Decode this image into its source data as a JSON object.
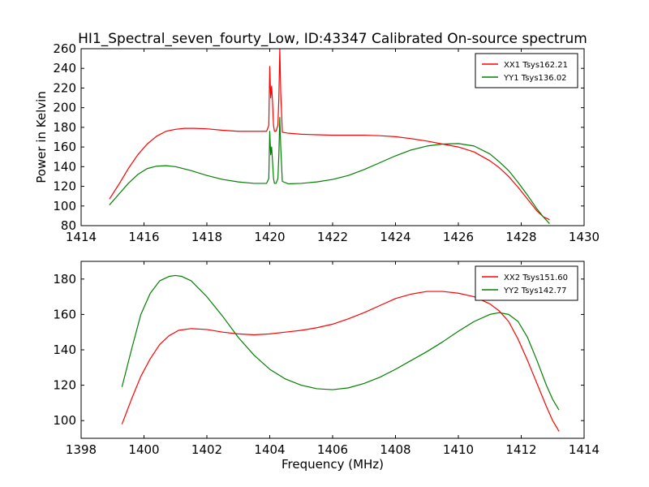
{
  "figure": {
    "title": "HI1_Spectral_seven_fourty_Low, ID:43347 Calibrated On-source spectrum",
    "xlabel": "Frequency (MHz)",
    "ylabel": "Power in Kelvin"
  },
  "chart_data": [
    {
      "type": "line",
      "xlim": [
        1414,
        1430
      ],
      "ylim": [
        80,
        260
      ],
      "xticks": [
        1414,
        1416,
        1418,
        1420,
        1422,
        1424,
        1426,
        1428,
        1430
      ],
      "yticks": [
        80,
        100,
        120,
        140,
        160,
        180,
        200,
        220,
        240,
        260
      ],
      "grid": false,
      "legend": "top-right",
      "series": [
        {
          "name": "XX1 Tsys162.21",
          "color": "#ff0000",
          "x": [
            1414.9,
            1415.2,
            1415.5,
            1415.8,
            1416.1,
            1416.4,
            1416.7,
            1417.0,
            1417.3,
            1417.6,
            1418.0,
            1418.5,
            1419.0,
            1419.5,
            1419.9,
            1419.97,
            1420.0,
            1420.03,
            1420.06,
            1420.09,
            1420.12,
            1420.15,
            1420.2,
            1420.26,
            1420.29,
            1420.32,
            1420.35,
            1420.4,
            1420.6,
            1421.0,
            1421.5,
            1422.0,
            1422.5,
            1423.0,
            1423.5,
            1424.0,
            1424.5,
            1425.0,
            1425.5,
            1426.0,
            1426.5,
            1427.0,
            1427.3,
            1427.6,
            1427.9,
            1428.2,
            1428.5,
            1428.7,
            1428.9
          ],
          "values": [
            107,
            122,
            138,
            152,
            163,
            171,
            176,
            178,
            179,
            179,
            178.5,
            177,
            176,
            176,
            176,
            182,
            242,
            210,
            222,
            205,
            182,
            176,
            176,
            182,
            210,
            260,
            215,
            175,
            174,
            173,
            172.5,
            172,
            172,
            172,
            171.5,
            170.5,
            168.5,
            166,
            163,
            160,
            155,
            146,
            139,
            130,
            119,
            107,
            95,
            89,
            86
          ]
        },
        {
          "name": "YY1 Tsys136.02",
          "color": "#008000",
          "x": [
            1414.9,
            1415.2,
            1415.5,
            1415.8,
            1416.1,
            1416.4,
            1416.7,
            1417.0,
            1417.5,
            1418.0,
            1418.5,
            1419.0,
            1419.5,
            1419.9,
            1419.97,
            1420.0,
            1420.03,
            1420.06,
            1420.09,
            1420.12,
            1420.15,
            1420.2,
            1420.26,
            1420.29,
            1420.32,
            1420.35,
            1420.4,
            1420.6,
            1421.0,
            1421.5,
            1422.0,
            1422.5,
            1423.0,
            1423.5,
            1424.0,
            1424.5,
            1425.0,
            1425.5,
            1426.0,
            1426.5,
            1427.0,
            1427.3,
            1427.6,
            1427.9,
            1428.2,
            1428.5,
            1428.7,
            1428.9
          ],
          "values": [
            101,
            112,
            123,
            132,
            138,
            140.5,
            141,
            140,
            136,
            131,
            127,
            124.5,
            123,
            123,
            128,
            176,
            152,
            160,
            145,
            128,
            123,
            123,
            128,
            152,
            190,
            160,
            125,
            122.5,
            123,
            124.5,
            127,
            131,
            137,
            144,
            151,
            157,
            161,
            163,
            163.5,
            161,
            153,
            145,
            136,
            124,
            111,
            97,
            89,
            82
          ]
        }
      ]
    },
    {
      "type": "line",
      "xlim": [
        1398,
        1414
      ],
      "ylim": [
        90,
        190
      ],
      "xticks": [
        1398,
        1400,
        1402,
        1404,
        1406,
        1408,
        1410,
        1412,
        1414
      ],
      "yticks": [
        100,
        120,
        140,
        160,
        180
      ],
      "grid": false,
      "legend": "top-right",
      "series": [
        {
          "name": "XX2 Tsys151.60",
          "color": "#ff0000",
          "x": [
            1399.3,
            1399.6,
            1399.9,
            1400.2,
            1400.5,
            1400.8,
            1401.1,
            1401.5,
            1402.0,
            1402.5,
            1403.0,
            1403.5,
            1404.0,
            1404.5,
            1405.0,
            1405.5,
            1406.0,
            1406.5,
            1407.0,
            1407.5,
            1408.0,
            1408.5,
            1409.0,
            1409.5,
            1410.0,
            1410.5,
            1411.0,
            1411.3,
            1411.6,
            1411.9,
            1412.2,
            1412.5,
            1412.8,
            1413.0,
            1413.2
          ],
          "values": [
            98,
            112,
            125,
            135,
            143,
            148,
            151,
            152,
            151.5,
            150,
            149,
            148.5,
            149,
            150,
            151,
            152.5,
            154.5,
            157.5,
            161,
            165,
            169,
            171.5,
            173,
            173,
            172,
            170,
            166,
            162,
            156,
            146,
            134,
            121,
            108,
            100,
            94
          ]
        },
        {
          "name": "YY2 Tsys142.77",
          "color": "#008000",
          "x": [
            1399.3,
            1399.6,
            1399.9,
            1400.2,
            1400.5,
            1400.8,
            1401.0,
            1401.2,
            1401.5,
            1402.0,
            1402.5,
            1403.0,
            1403.5,
            1404.0,
            1404.5,
            1405.0,
            1405.5,
            1406.0,
            1406.5,
            1407.0,
            1407.5,
            1408.0,
            1408.5,
            1409.0,
            1409.5,
            1410.0,
            1410.5,
            1411.0,
            1411.3,
            1411.6,
            1411.9,
            1412.2,
            1412.5,
            1412.8,
            1413.0,
            1413.2
          ],
          "values": [
            119,
            140,
            160,
            172,
            179,
            181.5,
            182,
            181.5,
            179,
            170,
            159,
            147,
            137,
            129,
            123.5,
            120,
            118,
            117.5,
            118.5,
            121,
            124.5,
            129,
            134,
            139,
            144.5,
            150.5,
            156,
            160,
            161,
            160,
            156,
            147,
            134,
            120,
            112,
            106
          ]
        }
      ]
    }
  ]
}
